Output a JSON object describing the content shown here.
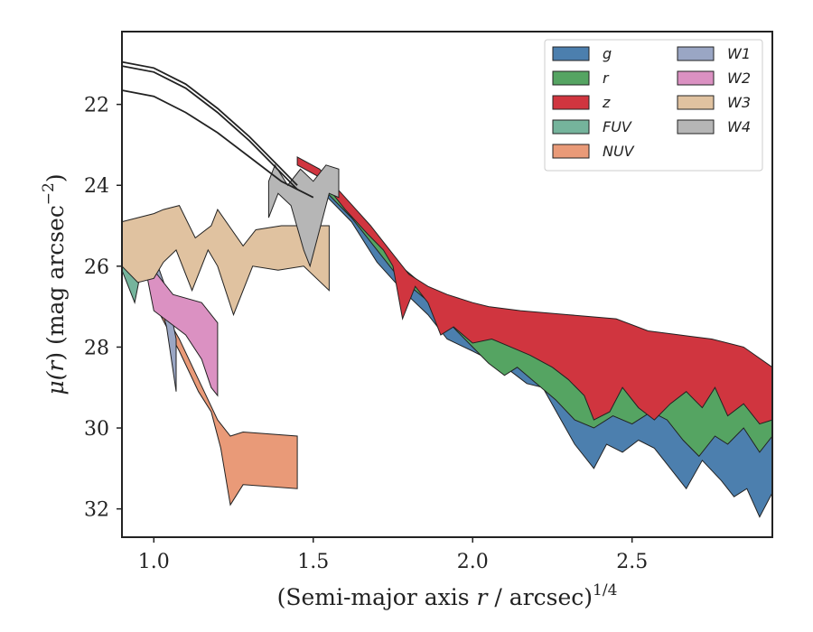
{
  "chart_data": {
    "type": "area",
    "xlabel": "(Semi-major axis r / arcsec)^1/4",
    "xlabel_main": "(Semi-major axis ",
    "xlabel_var": "r",
    "xlabel_rest": " / arcsec)",
    "xlabel_sup": "1/4",
    "ylabel": "μ(r) (mag arcsec^-2)",
    "ylabel_mu": "μ(",
    "ylabel_var": "r",
    "ylabel_rest": ") (mag arcsec",
    "ylabel_sup": "−2",
    "ylabel_close": ")",
    "xlim": [
      0.9,
      2.94
    ],
    "ylim": [
      32.7,
      20.2
    ],
    "y_inverted": true,
    "xticks": [
      {
        "value": 1.0,
        "label": "1.0"
      },
      {
        "value": 1.5,
        "label": "1.5"
      },
      {
        "value": 2.0,
        "label": "2.0"
      },
      {
        "value": 2.5,
        "label": "2.5"
      }
    ],
    "yticks": [
      {
        "value": 22,
        "label": "22"
      },
      {
        "value": 24,
        "label": "24"
      },
      {
        "value": 26,
        "label": "26"
      },
      {
        "value": 28,
        "label": "28"
      },
      {
        "value": 30,
        "label": "30"
      },
      {
        "value": 32,
        "label": "32"
      }
    ],
    "grid": false,
    "legend_position": "top-right",
    "legend_columns": 2,
    "series": [
      {
        "name": "g",
        "color": "#4c7fae",
        "upper": [
          [
            1.52,
            24.0
          ],
          [
            1.62,
            24.8
          ],
          [
            1.72,
            25.6
          ],
          [
            1.78,
            26.4
          ],
          [
            1.86,
            26.8
          ],
          [
            1.95,
            27.4
          ],
          [
            2.0,
            27.8
          ],
          [
            2.05,
            28.0
          ],
          [
            2.12,
            28.2
          ],
          [
            2.18,
            28.5
          ],
          [
            2.25,
            28.7
          ],
          [
            2.33,
            28.8
          ],
          [
            2.4,
            29.1
          ],
          [
            2.48,
            29.4
          ],
          [
            2.55,
            29.2
          ],
          [
            2.62,
            29.4
          ],
          [
            2.7,
            29.3
          ],
          [
            2.78,
            29.4
          ],
          [
            2.86,
            29.7
          ],
          [
            2.94,
            29.9
          ]
        ],
        "lower": [
          [
            1.52,
            24.1
          ],
          [
            1.62,
            24.9
          ],
          [
            1.7,
            25.9
          ],
          [
            1.78,
            26.6
          ],
          [
            1.86,
            27.2
          ],
          [
            1.92,
            27.8
          ],
          [
            2.0,
            28.1
          ],
          [
            2.05,
            28.3
          ],
          [
            2.12,
            28.6
          ],
          [
            2.17,
            28.9
          ],
          [
            2.22,
            29.0
          ],
          [
            2.27,
            29.7
          ],
          [
            2.32,
            30.4
          ],
          [
            2.38,
            31.0
          ],
          [
            2.42,
            30.4
          ],
          [
            2.47,
            30.6
          ],
          [
            2.52,
            30.3
          ],
          [
            2.57,
            30.5
          ],
          [
            2.62,
            31.0
          ],
          [
            2.67,
            31.5
          ],
          [
            2.72,
            30.8
          ],
          [
            2.78,
            31.3
          ],
          [
            2.82,
            31.7
          ],
          [
            2.86,
            31.5
          ],
          [
            2.9,
            32.2
          ],
          [
            2.94,
            31.6
          ]
        ]
      },
      {
        "name": "r",
        "color": "#55a462",
        "upper": [
          [
            1.52,
            23.8
          ],
          [
            1.62,
            24.6
          ],
          [
            1.7,
            25.3
          ],
          [
            1.76,
            25.9
          ],
          [
            1.82,
            26.3
          ],
          [
            1.88,
            26.7
          ],
          [
            1.94,
            27.1
          ],
          [
            2.0,
            27.4
          ],
          [
            2.06,
            27.6
          ],
          [
            2.12,
            27.8
          ],
          [
            2.18,
            28.0
          ],
          [
            2.25,
            28.2
          ],
          [
            2.33,
            28.4
          ],
          [
            2.4,
            28.6
          ],
          [
            2.5,
            28.8
          ],
          [
            2.58,
            29.0
          ],
          [
            2.65,
            28.8
          ],
          [
            2.72,
            28.9
          ],
          [
            2.8,
            29.0
          ],
          [
            2.88,
            29.1
          ],
          [
            2.94,
            29.2
          ]
        ],
        "lower": [
          [
            1.52,
            24.0
          ],
          [
            1.62,
            24.8
          ],
          [
            1.7,
            25.6
          ],
          [
            1.76,
            26.2
          ],
          [
            1.82,
            26.6
          ],
          [
            1.88,
            27.0
          ],
          [
            1.95,
            27.6
          ],
          [
            2.0,
            28.0
          ],
          [
            2.05,
            28.4
          ],
          [
            2.1,
            28.7
          ],
          [
            2.14,
            28.5
          ],
          [
            2.2,
            28.9
          ],
          [
            2.26,
            29.3
          ],
          [
            2.32,
            29.8
          ],
          [
            2.38,
            30.0
          ],
          [
            2.44,
            29.7
          ],
          [
            2.5,
            29.9
          ],
          [
            2.56,
            29.6
          ],
          [
            2.61,
            29.8
          ],
          [
            2.66,
            30.3
          ],
          [
            2.71,
            30.7
          ],
          [
            2.76,
            30.2
          ],
          [
            2.8,
            30.4
          ],
          [
            2.85,
            30.0
          ],
          [
            2.9,
            30.6
          ],
          [
            2.94,
            30.2
          ]
        ]
      },
      {
        "name": "z",
        "color": "#d0353f",
        "upper": [
          [
            1.45,
            23.3
          ],
          [
            1.52,
            23.6
          ],
          [
            1.6,
            24.3
          ],
          [
            1.68,
            25.0
          ],
          [
            1.75,
            25.7
          ],
          [
            1.8,
            26.2
          ],
          [
            1.86,
            26.5
          ],
          [
            1.92,
            26.7
          ],
          [
            2.0,
            26.9
          ],
          [
            2.05,
            27.0
          ],
          [
            2.15,
            27.1
          ],
          [
            2.3,
            27.2
          ],
          [
            2.45,
            27.3
          ],
          [
            2.55,
            27.6
          ],
          [
            2.65,
            27.7
          ],
          [
            2.75,
            27.8
          ],
          [
            2.85,
            28.0
          ],
          [
            2.94,
            28.5
          ]
        ],
        "lower": [
          [
            1.45,
            23.5
          ],
          [
            1.52,
            23.8
          ],
          [
            1.6,
            24.6
          ],
          [
            1.67,
            25.2
          ],
          [
            1.72,
            25.6
          ],
          [
            1.75,
            26.0
          ],
          [
            1.78,
            27.3
          ],
          [
            1.82,
            26.5
          ],
          [
            1.86,
            26.9
          ],
          [
            1.9,
            27.7
          ],
          [
            1.94,
            27.5
          ],
          [
            2.0,
            27.9
          ],
          [
            2.06,
            27.8
          ],
          [
            2.12,
            28.0
          ],
          [
            2.18,
            28.2
          ],
          [
            2.25,
            28.5
          ],
          [
            2.3,
            28.8
          ],
          [
            2.35,
            29.2
          ],
          [
            2.38,
            29.8
          ],
          [
            2.43,
            29.6
          ],
          [
            2.47,
            29.0
          ],
          [
            2.52,
            29.5
          ],
          [
            2.57,
            29.8
          ],
          [
            2.62,
            29.4
          ],
          [
            2.67,
            29.1
          ],
          [
            2.72,
            29.5
          ],
          [
            2.76,
            29.0
          ],
          [
            2.8,
            29.7
          ],
          [
            2.85,
            29.4
          ],
          [
            2.9,
            29.9
          ],
          [
            2.94,
            29.8
          ]
        ]
      },
      {
        "name": "FUV",
        "color": "#75b49c",
        "upper": [
          [
            0.9,
            25.6
          ],
          [
            0.94,
            25.8
          ],
          [
            0.96,
            26.0
          ]
        ],
        "lower": [
          [
            0.9,
            26.1
          ],
          [
            0.93,
            26.7
          ],
          [
            0.94,
            26.9
          ],
          [
            0.96,
            26.1
          ]
        ]
      },
      {
        "name": "NUV",
        "color": "#e99a78",
        "upper": [
          [
            1.0,
            26.7
          ],
          [
            1.08,
            27.8
          ],
          [
            1.14,
            28.8
          ],
          [
            1.2,
            29.8
          ],
          [
            1.24,
            30.2
          ],
          [
            1.28,
            30.1
          ],
          [
            1.45,
            30.2
          ]
        ],
        "lower": [
          [
            1.0,
            26.9
          ],
          [
            1.08,
            28.1
          ],
          [
            1.14,
            29.1
          ],
          [
            1.18,
            29.6
          ],
          [
            1.21,
            30.5
          ],
          [
            1.24,
            31.9
          ],
          [
            1.28,
            31.4
          ],
          [
            1.45,
            31.5
          ]
        ]
      },
      {
        "name": "W1",
        "color": "#9aa6c4",
        "upper": [
          [
            0.94,
            25.0
          ],
          [
            1.0,
            25.7
          ],
          [
            1.04,
            26.6
          ],
          [
            1.07,
            27.8
          ]
        ],
        "lower": [
          [
            0.94,
            25.1
          ],
          [
            1.0,
            26.3
          ],
          [
            1.04,
            27.5
          ],
          [
            1.07,
            29.1
          ]
        ]
      },
      {
        "name": "W2",
        "color": "#db91c2",
        "upper": [
          [
            0.95,
            25.0
          ],
          [
            1.0,
            26.1
          ],
          [
            1.06,
            26.7
          ],
          [
            1.15,
            26.9
          ],
          [
            1.2,
            27.4
          ]
        ],
        "lower": [
          [
            0.95,
            25.1
          ],
          [
            1.0,
            27.1
          ],
          [
            1.1,
            27.7
          ],
          [
            1.15,
            28.3
          ],
          [
            1.18,
            29.0
          ],
          [
            1.2,
            29.2
          ]
        ]
      },
      {
        "name": "W3",
        "color": "#e0c2a0",
        "upper": [
          [
            0.9,
            24.9
          ],
          [
            0.95,
            24.8
          ],
          [
            1.0,
            24.7
          ],
          [
            1.03,
            24.6
          ],
          [
            1.08,
            24.5
          ],
          [
            1.13,
            25.3
          ],
          [
            1.18,
            25.0
          ],
          [
            1.2,
            24.6
          ],
          [
            1.28,
            25.5
          ],
          [
            1.32,
            25.1
          ],
          [
            1.4,
            25.0
          ],
          [
            1.55,
            25.0
          ]
        ],
        "lower": [
          [
            0.9,
            26.0
          ],
          [
            0.95,
            26.4
          ],
          [
            1.0,
            26.3
          ],
          [
            1.03,
            25.9
          ],
          [
            1.07,
            25.6
          ],
          [
            1.12,
            26.6
          ],
          [
            1.17,
            25.6
          ],
          [
            1.2,
            26.0
          ],
          [
            1.25,
            27.2
          ],
          [
            1.31,
            26.0
          ],
          [
            1.39,
            26.1
          ],
          [
            1.47,
            26.0
          ],
          [
            1.55,
            26.6
          ]
        ]
      },
      {
        "name": "W4",
        "color": "#b6b6b6",
        "upper": [
          [
            1.36,
            23.9
          ],
          [
            1.38,
            23.5
          ],
          [
            1.42,
            24.0
          ],
          [
            1.46,
            23.6
          ],
          [
            1.5,
            23.9
          ],
          [
            1.54,
            23.5
          ],
          [
            1.58,
            23.6
          ]
        ],
        "lower": [
          [
            1.36,
            24.8
          ],
          [
            1.39,
            24.2
          ],
          [
            1.43,
            24.5
          ],
          [
            1.47,
            25.6
          ],
          [
            1.49,
            26.0
          ],
          [
            1.52,
            25.1
          ],
          [
            1.55,
            24.2
          ],
          [
            1.58,
            24.3
          ]
        ]
      }
    ],
    "model_curves": [
      [
        [
          0.9,
          20.95
        ],
        [
          1.0,
          21.1
        ],
        [
          1.1,
          21.5
        ],
        [
          1.2,
          22.1
        ],
        [
          1.3,
          22.8
        ],
        [
          1.4,
          23.6
        ],
        [
          1.45,
          24.0
        ]
      ],
      [
        [
          0.9,
          21.05
        ],
        [
          1.0,
          21.2
        ],
        [
          1.1,
          21.6
        ],
        [
          1.2,
          22.2
        ],
        [
          1.3,
          22.9
        ],
        [
          1.4,
          23.7
        ],
        [
          1.45,
          24.1
        ]
      ],
      [
        [
          0.9,
          21.65
        ],
        [
          1.0,
          21.8
        ],
        [
          1.1,
          22.2
        ],
        [
          1.2,
          22.7
        ],
        [
          1.3,
          23.3
        ],
        [
          1.4,
          23.9
        ],
        [
          1.5,
          24.3
        ]
      ]
    ]
  }
}
